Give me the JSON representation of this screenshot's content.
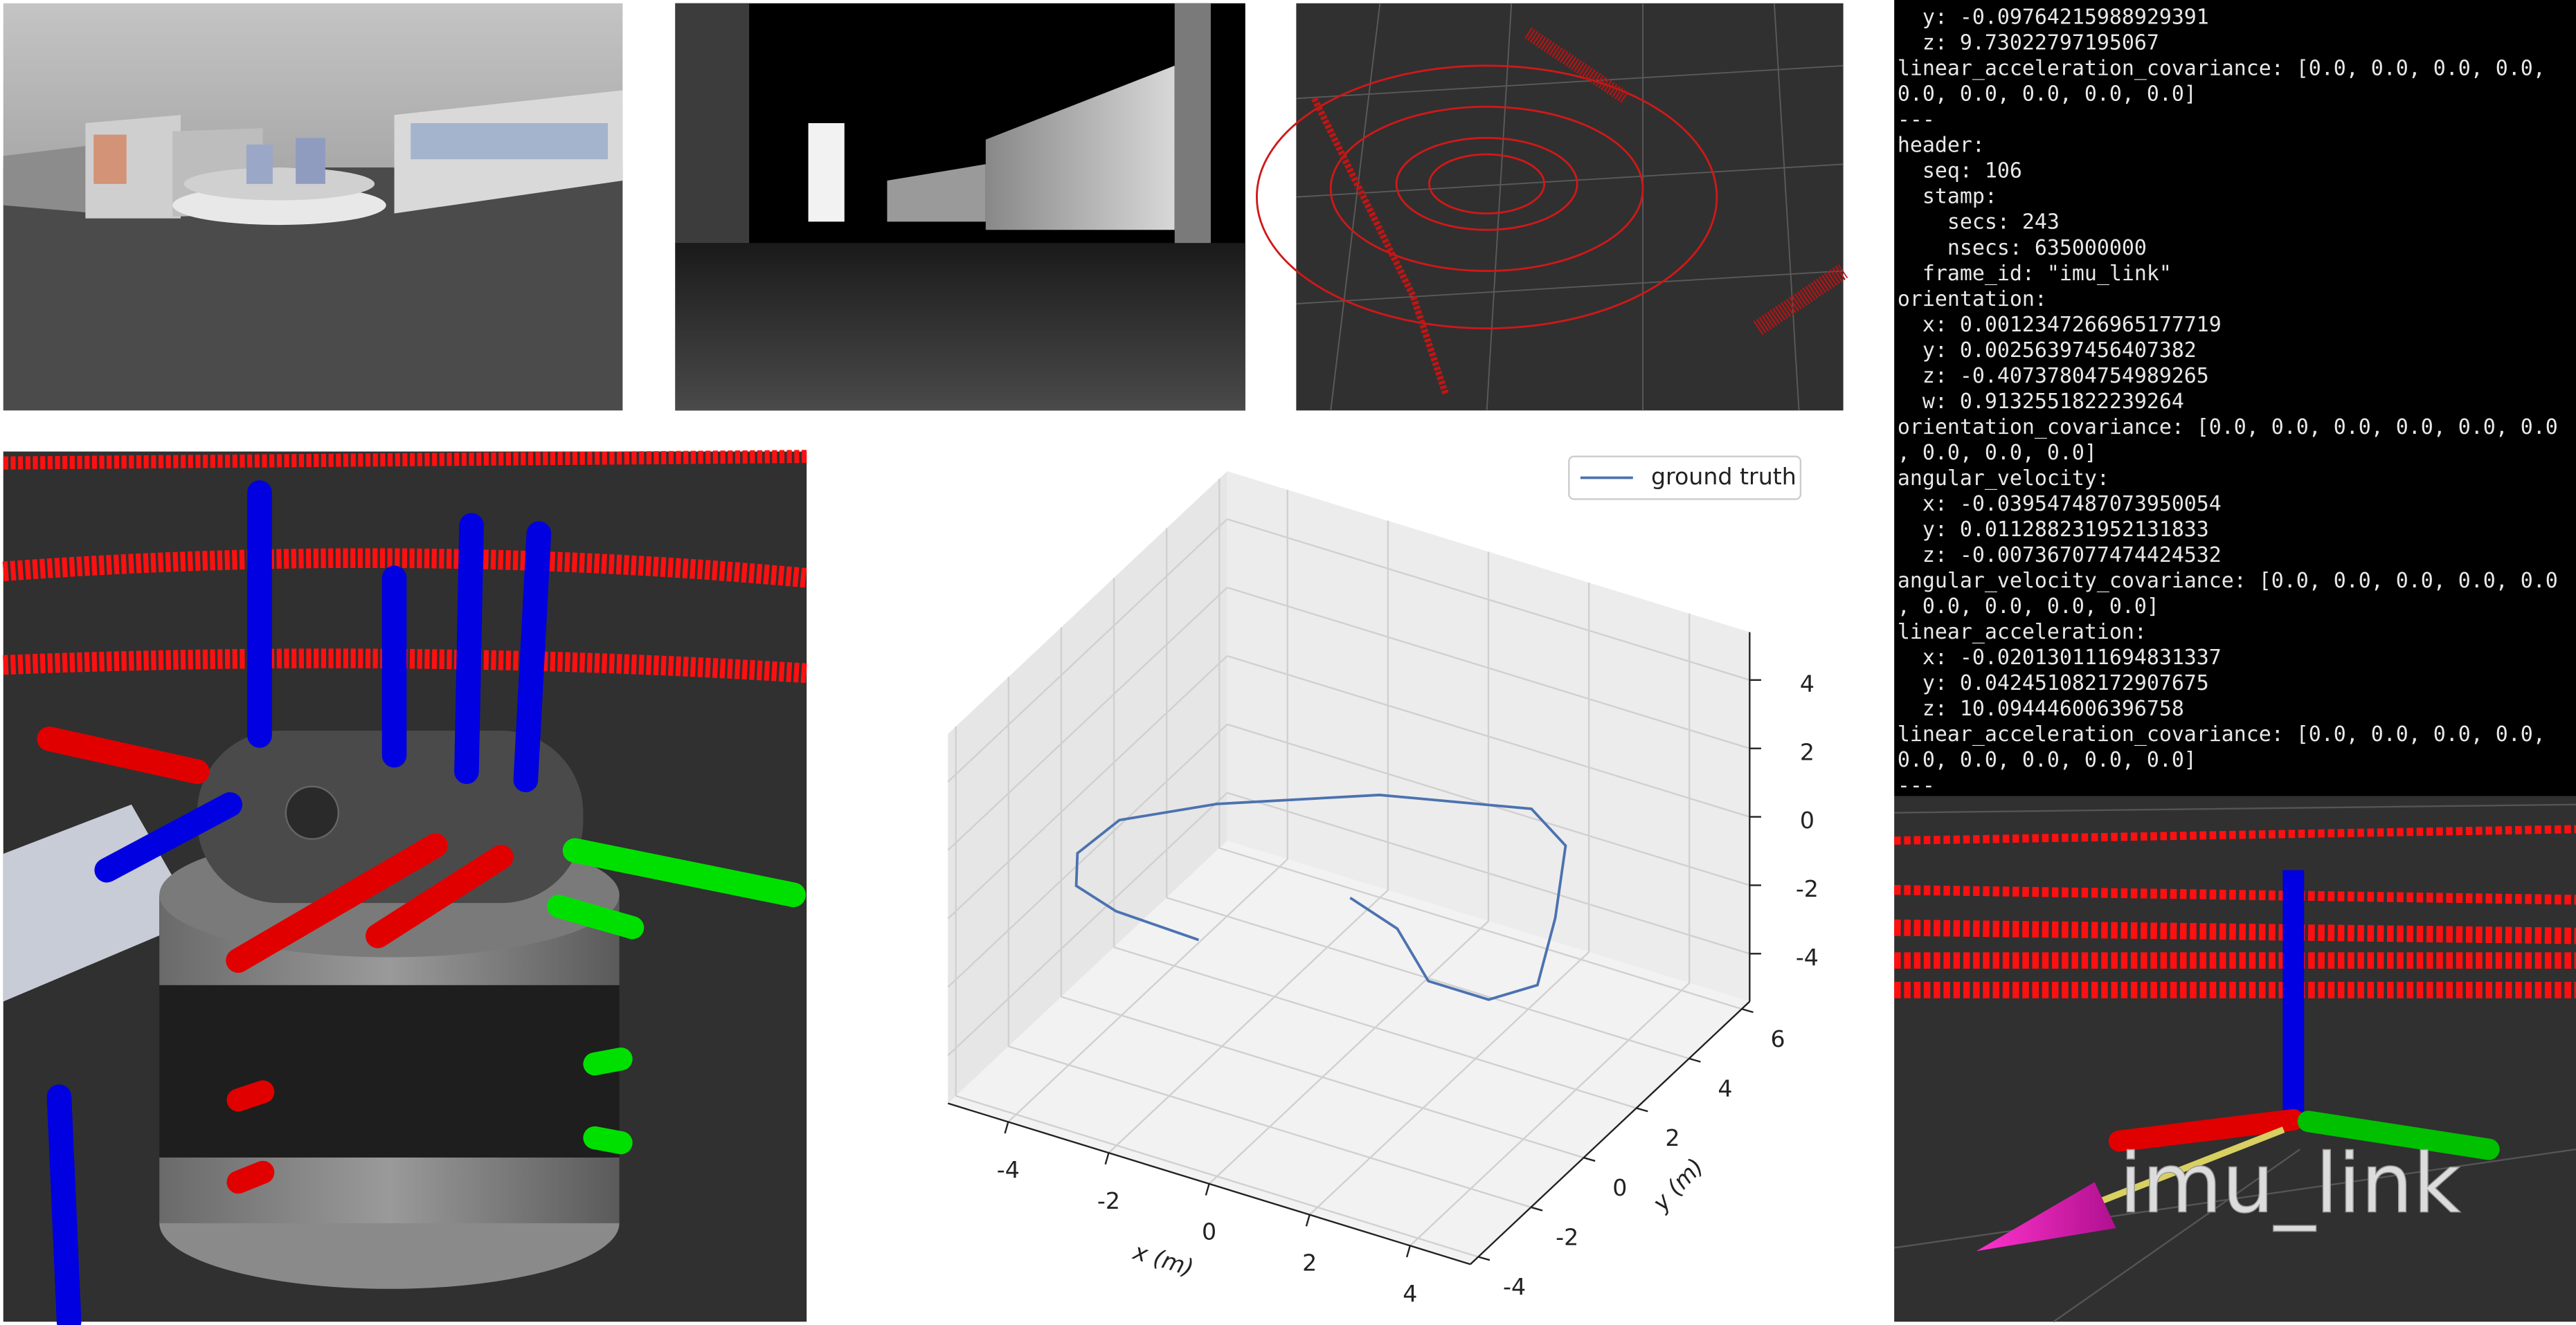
{
  "terminal": {
    "lines": [
      "  y: -0.09764215988929391",
      "  z: 9.73022797195067",
      "linear_acceleration_covariance: [0.0, 0.0, 0.0, 0.0,",
      "0.0, 0.0, 0.0, 0.0, 0.0]",
      "---",
      "header:",
      "  seq: 106",
      "  stamp:",
      "    secs: 243",
      "    nsecs: 635000000",
      "  frame_id: \"imu_link\"",
      "orientation:",
      "  x: 0.0012347266965177719",
      "  y: 0.00256397456407382",
      "  z: -0.40737804754989265",
      "  w: 0.9132551822239264",
      "orientation_covariance: [0.0, 0.0, 0.0, 0.0, 0.0, 0.0",
      ", 0.0, 0.0, 0.0]",
      "angular_velocity:",
      "  x: -0.039547487073950054",
      "  y: 0.011288231952131833",
      "  z: -0.007367077474424532",
      "angular_velocity_covariance: [0.0, 0.0, 0.0, 0.0, 0.0",
      ", 0.0, 0.0, 0.0, 0.0]",
      "linear_acceleration:",
      "  x: -0.020130111694831337",
      "  y: 0.042451082172907675",
      "  z: 10.094446006396758",
      "linear_acceleration_covariance: [0.0, 0.0, 0.0, 0.0,",
      "0.0, 0.0, 0.0, 0.0, 0.0]",
      "---"
    ]
  },
  "rviz_label": "imu_link",
  "chart_data": {
    "type": "line3d",
    "xlabel": "x (m)",
    "ylabel": "y (m)",
    "xlim": [
      -5.2,
      5.2
    ],
    "ylim": [
      -4.3,
      6.3
    ],
    "zlim": [
      -5.4,
      5.4
    ],
    "xticks": [
      -4,
      -2,
      0,
      2,
      4
    ],
    "yticks": [
      -4,
      -2,
      0,
      2,
      4,
      6
    ],
    "zticks": [
      -4,
      -2,
      0,
      2,
      4
    ],
    "grid": true,
    "legend_location": "upper right",
    "series": [
      {
        "name": "ground truth",
        "color": "#4c72b0",
        "x": [
          -1.1,
          -2.8,
          -3.8,
          -4.3,
          -4.2,
          -3.0,
          -0.7,
          1.8,
          2.9,
          3.9,
          4.7,
          4.2,
          3.0,
          1.7,
          0.5
        ],
        "y": [
          -2.6,
          -2.5,
          -2.1,
          -1.1,
          0.3,
          1.7,
          3.5,
          4.5,
          3.7,
          1.4,
          -0.8,
          -1.7,
          -1.7,
          -0.4,
          0.1
        ],
        "z": [
          0,
          0,
          0,
          0,
          0,
          0,
          0,
          0,
          0,
          0,
          0,
          0,
          0,
          0,
          0
        ]
      }
    ]
  }
}
